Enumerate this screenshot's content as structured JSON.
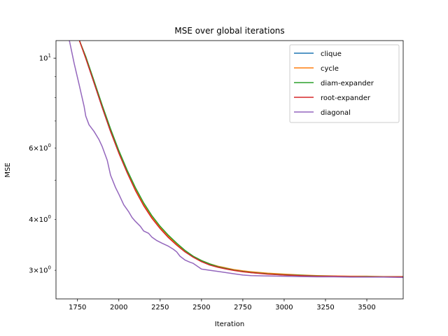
{
  "chart_data": {
    "type": "line",
    "title": "MSE over global iterations",
    "xlabel": "Iteration",
    "ylabel": "MSE",
    "yscale": "log",
    "xlim": [
      1620,
      3720
    ],
    "ylim": [
      2.55,
      11.05
    ],
    "xticks": [
      1750,
      2000,
      2250,
      2500,
      2750,
      3000,
      3250,
      3500
    ],
    "xtick_labels": [
      "1750",
      "2000",
      "2250",
      "2500",
      "2750",
      "3000",
      "3250",
      "3500"
    ],
    "yticks_major": [
      10
    ],
    "ytick_major_labels": [
      "10^1"
    ],
    "yticks_minor": [
      3,
      4,
      6
    ],
    "ytick_minor_labels": [
      "3×10^0",
      "4×10^0",
      "6×10^0"
    ],
    "yticks_unlabeled": [
      5,
      7,
      8,
      9
    ],
    "grid": false,
    "legend_position": "top-right",
    "series": [
      {
        "name": "clique",
        "color": "#1f77b4",
        "points": [
          [
            1760,
            11.1
          ],
          [
            1800,
            10.0
          ],
          [
            1850,
            8.7
          ],
          [
            1900,
            7.55
          ],
          [
            1950,
            6.6
          ],
          [
            2000,
            5.85
          ],
          [
            2050,
            5.25
          ],
          [
            2100,
            4.75
          ],
          [
            2150,
            4.35
          ],
          [
            2200,
            4.05
          ],
          [
            2250,
            3.82
          ],
          [
            2300,
            3.63
          ],
          [
            2350,
            3.47
          ],
          [
            2400,
            3.34
          ],
          [
            2450,
            3.24
          ],
          [
            2500,
            3.16
          ],
          [
            2550,
            3.1
          ],
          [
            2600,
            3.06
          ],
          [
            2650,
            3.03
          ],
          [
            2700,
            3.0
          ],
          [
            2750,
            2.98
          ],
          [
            2800,
            2.96
          ],
          [
            2900,
            2.94
          ],
          [
            3000,
            2.92
          ],
          [
            3100,
            2.91
          ],
          [
            3200,
            2.905
          ],
          [
            3300,
            2.9
          ],
          [
            3400,
            2.895
          ],
          [
            3500,
            2.895
          ],
          [
            3600,
            2.89
          ],
          [
            3720,
            2.89
          ]
        ]
      },
      {
        "name": "cycle",
        "color": "#ff7f0e",
        "points": [
          [
            1760,
            11.1
          ],
          [
            1800,
            10.0
          ],
          [
            1850,
            8.75
          ],
          [
            1900,
            7.6
          ],
          [
            1950,
            6.62
          ],
          [
            2000,
            5.86
          ],
          [
            2050,
            5.26
          ],
          [
            2100,
            4.76
          ],
          [
            2150,
            4.36
          ],
          [
            2200,
            4.06
          ],
          [
            2250,
            3.83
          ],
          [
            2300,
            3.64
          ],
          [
            2350,
            3.48
          ],
          [
            2400,
            3.35
          ],
          [
            2450,
            3.25
          ],
          [
            2500,
            3.17
          ],
          [
            2550,
            3.11
          ],
          [
            2600,
            3.07
          ],
          [
            2650,
            3.04
          ],
          [
            2700,
            3.01
          ],
          [
            2750,
            2.99
          ],
          [
            2800,
            2.975
          ],
          [
            2900,
            2.95
          ],
          [
            3000,
            2.935
          ],
          [
            3100,
            2.92
          ],
          [
            3200,
            2.91
          ],
          [
            3300,
            2.905
          ],
          [
            3400,
            2.9
          ],
          [
            3500,
            2.9
          ],
          [
            3600,
            2.895
          ],
          [
            3720,
            2.895
          ]
        ]
      },
      {
        "name": "diam-expander",
        "color": "#2ca02c",
        "points": [
          [
            1760,
            11.1
          ],
          [
            1800,
            10.1
          ],
          [
            1850,
            8.8
          ],
          [
            1900,
            7.65
          ],
          [
            1950,
            6.7
          ],
          [
            2000,
            5.92
          ],
          [
            2050,
            5.3
          ],
          [
            2100,
            4.8
          ],
          [
            2150,
            4.4
          ],
          [
            2200,
            4.09
          ],
          [
            2250,
            3.85
          ],
          [
            2300,
            3.66
          ],
          [
            2350,
            3.5
          ],
          [
            2400,
            3.36
          ],
          [
            2450,
            3.25
          ],
          [
            2500,
            3.17
          ],
          [
            2550,
            3.11
          ],
          [
            2600,
            3.06
          ],
          [
            2650,
            3.03
          ],
          [
            2700,
            3.0
          ],
          [
            2750,
            2.98
          ],
          [
            2800,
            2.965
          ],
          [
            2900,
            2.94
          ],
          [
            3000,
            2.925
          ],
          [
            3100,
            2.915
          ],
          [
            3200,
            2.905
          ],
          [
            3300,
            2.9
          ],
          [
            3400,
            2.895
          ],
          [
            3500,
            2.895
          ],
          [
            3600,
            2.89
          ],
          [
            3720,
            2.89
          ]
        ]
      },
      {
        "name": "root-expander",
        "color": "#d62728",
        "points": [
          [
            1760,
            11.1
          ],
          [
            1800,
            10.0
          ],
          [
            1850,
            8.7
          ],
          [
            1900,
            7.55
          ],
          [
            1950,
            6.6
          ],
          [
            2000,
            5.83
          ],
          [
            2050,
            5.22
          ],
          [
            2100,
            4.72
          ],
          [
            2150,
            4.33
          ],
          [
            2200,
            4.03
          ],
          [
            2250,
            3.8
          ],
          [
            2300,
            3.61
          ],
          [
            2350,
            3.46
          ],
          [
            2400,
            3.33
          ],
          [
            2450,
            3.23
          ],
          [
            2500,
            3.15
          ],
          [
            2550,
            3.09
          ],
          [
            2600,
            3.05
          ],
          [
            2650,
            3.02
          ],
          [
            2700,
            2.995
          ],
          [
            2750,
            2.975
          ],
          [
            2800,
            2.96
          ],
          [
            2900,
            2.935
          ],
          [
            3000,
            2.92
          ],
          [
            3100,
            2.91
          ],
          [
            3200,
            2.9
          ],
          [
            3300,
            2.9
          ],
          [
            3400,
            2.895
          ],
          [
            3500,
            2.89
          ],
          [
            3600,
            2.89
          ],
          [
            3720,
            2.89
          ]
        ]
      },
      {
        "name": "diagonal",
        "color": "#9467bd",
        "points": [
          [
            1700,
            11.1
          ],
          [
            1730,
            9.7
          ],
          [
            1760,
            8.6
          ],
          [
            1790,
            7.6
          ],
          [
            1800,
            7.2
          ],
          [
            1820,
            6.85
          ],
          [
            1850,
            6.6
          ],
          [
            1880,
            6.3
          ],
          [
            1900,
            6.05
          ],
          [
            1930,
            5.6
          ],
          [
            1950,
            5.15
          ],
          [
            1980,
            4.8
          ],
          [
            2000,
            4.62
          ],
          [
            2030,
            4.35
          ],
          [
            2060,
            4.18
          ],
          [
            2080,
            4.05
          ],
          [
            2100,
            3.96
          ],
          [
            2130,
            3.85
          ],
          [
            2150,
            3.75
          ],
          [
            2180,
            3.7
          ],
          [
            2200,
            3.62
          ],
          [
            2230,
            3.55
          ],
          [
            2260,
            3.5
          ],
          [
            2300,
            3.44
          ],
          [
            2330,
            3.38
          ],
          [
            2350,
            3.33
          ],
          [
            2370,
            3.25
          ],
          [
            2400,
            3.18
          ],
          [
            2430,
            3.14
          ],
          [
            2450,
            3.12
          ],
          [
            2480,
            3.06
          ],
          [
            2500,
            3.02
          ],
          [
            2550,
            3.0
          ],
          [
            2600,
            2.98
          ],
          [
            2650,
            2.96
          ],
          [
            2700,
            2.94
          ],
          [
            2750,
            2.92
          ],
          [
            2800,
            2.91
          ],
          [
            2900,
            2.905
          ],
          [
            3000,
            2.9
          ],
          [
            3100,
            2.895
          ],
          [
            3200,
            2.89
          ],
          [
            3300,
            2.89
          ],
          [
            3400,
            2.885
          ],
          [
            3500,
            2.885
          ],
          [
            3600,
            2.885
          ],
          [
            3720,
            2.88
          ]
        ]
      }
    ]
  }
}
